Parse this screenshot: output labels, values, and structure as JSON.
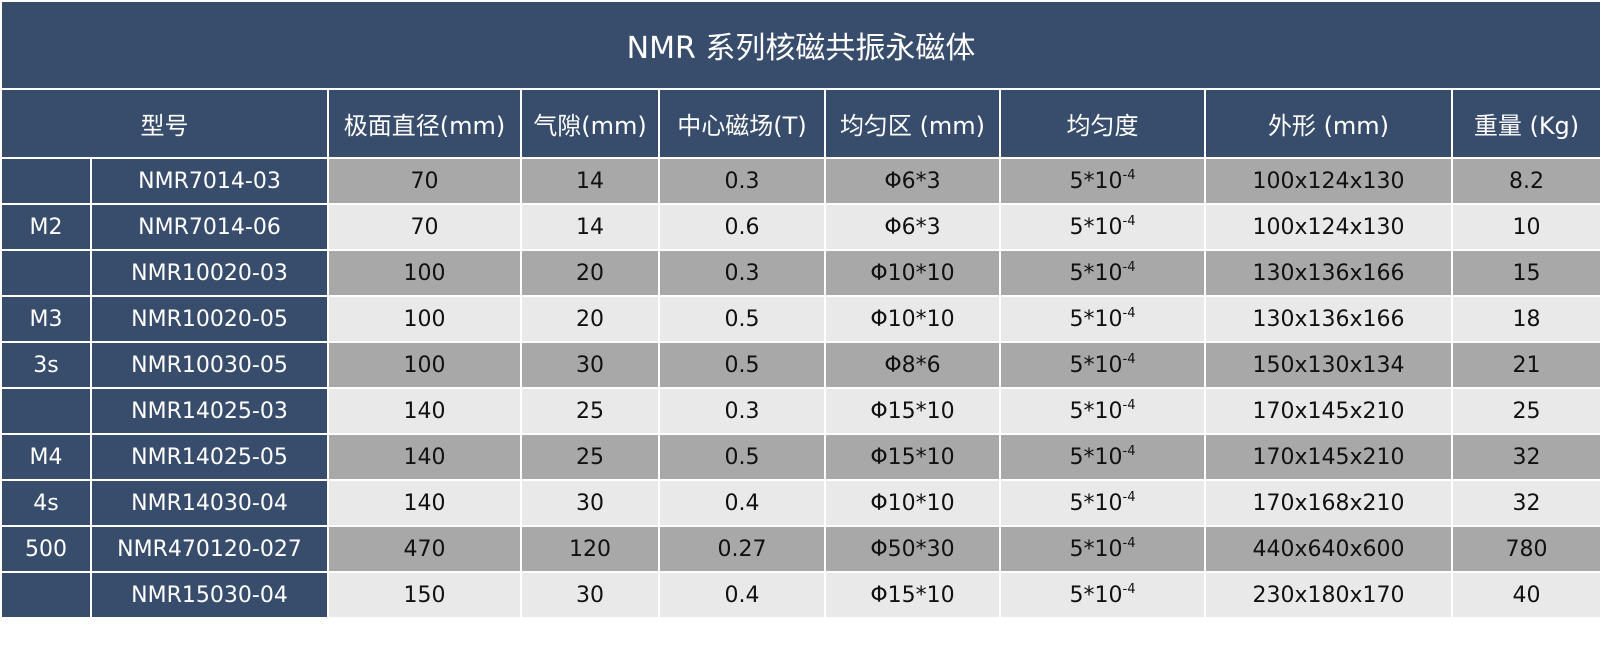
{
  "title": "NMR 系列核磁共振永磁体",
  "headers": [
    "型号",
    "极面直径(mm)",
    "气隙(mm)",
    "中心磁场(T)",
    "均匀区 (mm)",
    "均匀度",
    "外形 (mm)",
    "重量 (Kg)"
  ],
  "uniformity": {
    "base": "5*10",
    "exp": "-4"
  },
  "rows": [
    {
      "series": "",
      "model": "NMR7014-03",
      "pole": "70",
      "gap": "14",
      "field": "0.3",
      "region": "Φ6*3",
      "size": "100x124x130",
      "weight": "8.2"
    },
    {
      "series": "M2",
      "model": "NMR7014-06",
      "pole": "70",
      "gap": "14",
      "field": "0.6",
      "region": "Φ6*3",
      "size": "100x124x130",
      "weight": "10"
    },
    {
      "series": "",
      "model": "NMR10020-03",
      "pole": "100",
      "gap": "20",
      "field": "0.3",
      "region": "Φ10*10",
      "size": "130x136x166",
      "weight": "15"
    },
    {
      "series": "M3",
      "model": "NMR10020-05",
      "pole": "100",
      "gap": "20",
      "field": "0.5",
      "region": "Φ10*10",
      "size": "130x136x166",
      "weight": "18"
    },
    {
      "series": "3s",
      "model": "NMR10030-05",
      "pole": "100",
      "gap": "30",
      "field": "0.5",
      "region": "Φ8*6",
      "size": "150x130x134",
      "weight": "21"
    },
    {
      "series": "",
      "model": "NMR14025-03",
      "pole": "140",
      "gap": "25",
      "field": "0.3",
      "region": "Φ15*10",
      "size": "170x145x210",
      "weight": "25"
    },
    {
      "series": "M4",
      "model": "NMR14025-05",
      "pole": "140",
      "gap": "25",
      "field": "0.5",
      "region": "Φ15*10",
      "size": "170x145x210",
      "weight": "32"
    },
    {
      "series": "4s",
      "model": "NMR14030-04",
      "pole": "140",
      "gap": "30",
      "field": "0.4",
      "region": "Φ10*10",
      "size": "170x168x210",
      "weight": "32"
    },
    {
      "series": "500",
      "model": "NMR470120-027",
      "pole": "470",
      "gap": "120",
      "field": "0.27",
      "region": "Φ50*30",
      "size": "440x640x600",
      "weight": "780"
    },
    {
      "series": "",
      "model": "NMR15030-04",
      "pole": "150",
      "gap": "30",
      "field": "0.4",
      "region": "Φ15*10",
      "size": "230x180x170",
      "weight": "40"
    }
  ]
}
